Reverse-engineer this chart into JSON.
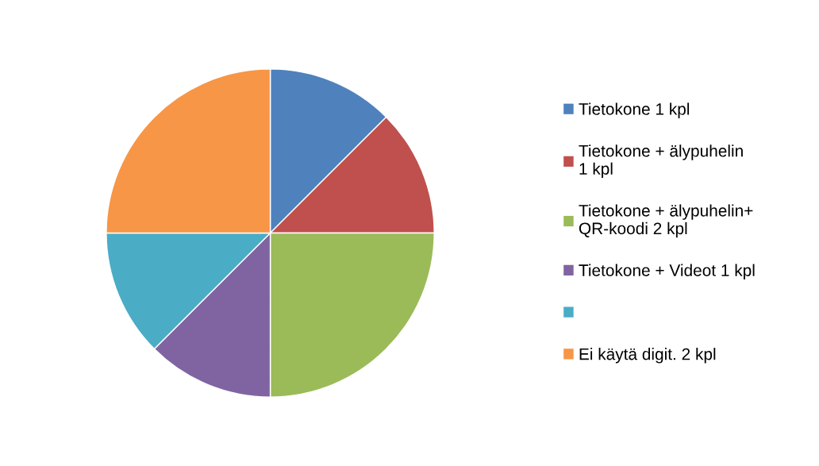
{
  "chart_data": {
    "type": "pie",
    "categories": [
      "Tietokone 1 kpl",
      "Tietokone + älypuhelin\n1 kpl",
      "Tietokone + älypuhelin+\nQR-koodi 2 kpl",
      "Tietokone + Videot 1 kpl",
      null,
      "Ei käytä digit. 2 kpl"
    ],
    "values": [
      1,
      1,
      2,
      1,
      1,
      2
    ],
    "colors": [
      "#4f81bd",
      "#c0504d",
      "#9bbb59",
      "#8064a2",
      "#4bacc6",
      "#f79646"
    ],
    "legend": "right"
  }
}
